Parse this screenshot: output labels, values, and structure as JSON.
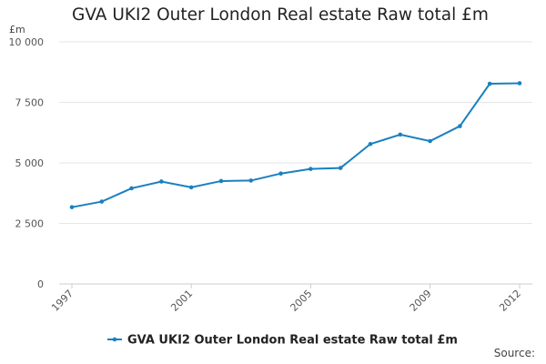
{
  "title": "GVA UKI2 Outer London Real estate Raw total £m",
  "source_label": "Source:",
  "colors": {
    "series": "#1a80bf"
  },
  "chart_data": {
    "type": "line",
    "title": "GVA UKI2 Outer London Real estate Raw total £m",
    "ylabel": "£m",
    "xlabel": "",
    "ylim": [
      0,
      10000
    ],
    "yticks": [
      0,
      2500,
      5000,
      7500,
      10000
    ],
    "ytick_labels": [
      "0",
      "2 500",
      "5 000",
      "7 500",
      "10 000"
    ],
    "xlim": [
      1997,
      2012
    ],
    "xticks": [
      1997,
      2001,
      2005,
      2009,
      2012
    ],
    "xtick_labels": [
      "1997",
      "2001",
      "2005",
      "2009",
      "2012"
    ],
    "grid": true,
    "legend_position": "bottom",
    "series": [
      {
        "name": "GVA UKI2 Outer London Real estate Raw total £m",
        "x": [
          1997,
          1998,
          1999,
          2000,
          2001,
          2002,
          2003,
          2004,
          2005,
          2006,
          2007,
          2008,
          2009,
          2010,
          2011,
          2012
        ],
        "values": [
          3170,
          3400,
          3950,
          4230,
          3990,
          4250,
          4270,
          4560,
          4750,
          4790,
          5780,
          6170,
          5900,
          6520,
          8270,
          8290
        ]
      }
    ]
  }
}
